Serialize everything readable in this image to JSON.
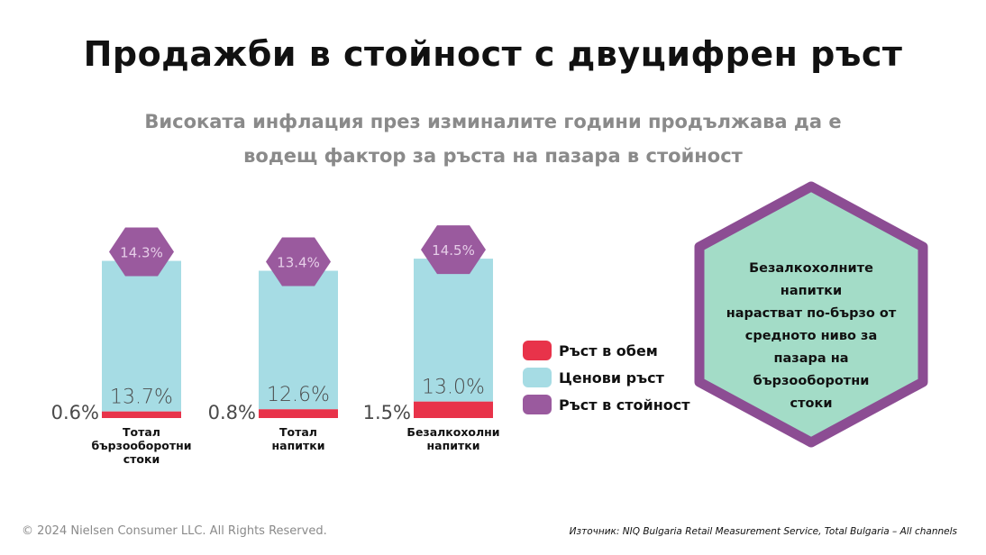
{
  "title": "Продажби в стойност с двуцифрен ръст",
  "subtitle": "Високата инфлация през изминалите години продължава да е водещ фактор за ръста на пазара в стойност",
  "colors": {
    "volume": "#e8334a",
    "price": "#a6dce4",
    "value": "#9a5a9e",
    "note_fill": "#a3dcc7",
    "note_border": "#8c4d93"
  },
  "chart_data": {
    "type": "bar",
    "stacked": true,
    "categories": [
      "Тотал бързооборотни стоки",
      "Тотал напитки",
      "Безалкохолни напитки"
    ],
    "category_lines": [
      [
        "Тотал",
        "бързооборотни",
        "стоки"
      ],
      [
        "Тотал",
        "напитки"
      ],
      [
        "Безалкохолни",
        "напитки"
      ]
    ],
    "series": [
      {
        "name": "Ръст в обем",
        "values": [
          0.6,
          0.8,
          1.5
        ],
        "labels": [
          "0.6%",
          "0.8%",
          "1.5%"
        ]
      },
      {
        "name": "Ценови ръст",
        "values": [
          13.7,
          12.6,
          13.0
        ],
        "labels": [
          "13.7%",
          "12.6%",
          "13.0%"
        ]
      },
      {
        "name": "Ръст в стойност",
        "values": [
          14.3,
          13.4,
          14.5
        ],
        "labels": [
          "14.3%",
          "13.4%",
          "14.5%"
        ]
      }
    ],
    "legend_position": "right"
  },
  "legend": [
    {
      "label": "Ръст в обем",
      "color": "#e8334a"
    },
    {
      "label": "Ценови ръст",
      "color": "#a6dce4"
    },
    {
      "label": "Ръст в стойност",
      "color": "#9a5a9e"
    }
  ],
  "note": {
    "lines": [
      "Безалкохолните напитки",
      "нарастват по-бързо от",
      "средното ниво за",
      "пазара на",
      "бързооборотни",
      "стоки"
    ]
  },
  "footer": {
    "copyright": "© 2024 Nielsen Consumer LLC. All Rights Reserved.",
    "source": "Източник: NIQ Bulgaria Retail Measurement Service, Total Bulgaria – All channels"
  }
}
